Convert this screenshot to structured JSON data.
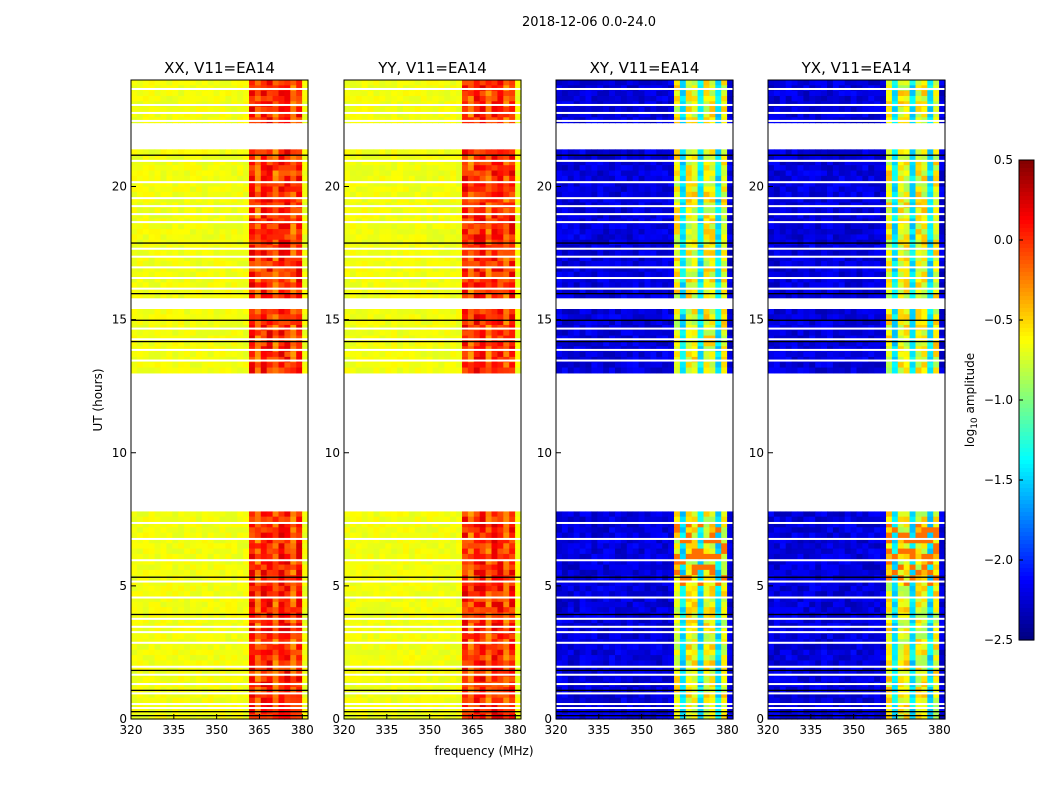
{
  "chart_data": {
    "type": "heatmap",
    "suptitle": "2018-12-06 0.0-24.0",
    "xlabel": "frequency (MHz)",
    "ylabel": "UT (hours)",
    "xlim": [
      320,
      382
    ],
    "ylim": [
      0,
      24
    ],
    "x_ticks": [
      320,
      335,
      350,
      365,
      380
    ],
    "y_ticks": [
      0,
      5,
      10,
      15,
      20
    ],
    "colorbar": {
      "label": "log10 amplitude",
      "label_main": "log",
      "label_sub": "10",
      "label_rest": " amplitude",
      "range": [
        -2.5,
        0.5
      ],
      "ticks": [
        "0.5",
        "0.0",
        "−0.5",
        "−1.0",
        "−1.5",
        "−2.0",
        "−2.5"
      ],
      "tick_values": [
        0.5,
        0.0,
        -0.5,
        -1.0,
        -1.5,
        -2.0,
        -2.5
      ],
      "colormap": "jet"
    },
    "panels": [
      {
        "name": "XX",
        "title": "XX, V11=EA14",
        "kind": "parallel"
      },
      {
        "name": "YY",
        "title": "YY, V11=EA14",
        "kind": "parallel"
      },
      {
        "name": "XY",
        "title": "XY, V11=EA14",
        "kind": "cross"
      },
      {
        "name": "YX",
        "title": "YX, V11=EA14",
        "kind": "cross"
      }
    ],
    "flagged_time_ranges_hours": [
      [
        7.8,
        12.9
      ],
      [
        21.4,
        22.3
      ],
      [
        15.3,
        15.8
      ]
    ],
    "rfi_band_mhz": [
      361,
      381
    ],
    "tick_labels": {
      "x": [
        "320",
        "335",
        "350",
        "365",
        "380"
      ],
      "y": [
        "0",
        "5",
        "10",
        "15",
        "20"
      ]
    }
  }
}
